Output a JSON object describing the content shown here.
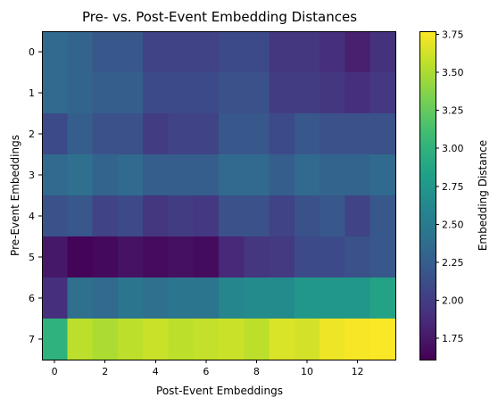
{
  "chart_data": {
    "type": "heatmap",
    "title": "Pre- vs. Post-Event Embedding Distances",
    "xlabel": "Post-Event Embeddings",
    "ylabel": "Pre-Event Embeddings",
    "colorbar_label": "Embedding Distance",
    "colormap": "viridis",
    "vmin": 1.61,
    "vmax": 3.77,
    "rows": 8,
    "cols": 14,
    "x_ticks": [
      0,
      2,
      4,
      6,
      8,
      10,
      12
    ],
    "x_tick_labels": [
      "0",
      "2",
      "4",
      "6",
      "8",
      "10",
      "12"
    ],
    "y_ticks": [
      0,
      1,
      2,
      3,
      4,
      5,
      6,
      7
    ],
    "y_tick_labels": [
      "0",
      "1",
      "2",
      "3",
      "4",
      "5",
      "6",
      "7"
    ],
    "colorbar_ticks": [
      1.75,
      2.0,
      2.25,
      2.5,
      2.75,
      3.0,
      3.25,
      3.5,
      3.75
    ],
    "colorbar_tick_labels": [
      "1.75",
      "2.00",
      "2.25",
      "2.50",
      "2.75",
      "3.00",
      "3.25",
      "3.50",
      "3.75"
    ],
    "values": [
      [
        2.35,
        2.3,
        2.2,
        2.2,
        2.05,
        2.05,
        2.05,
        2.1,
        2.1,
        1.95,
        1.95,
        1.9,
        1.8,
        1.92
      ],
      [
        2.35,
        2.3,
        2.25,
        2.25,
        2.1,
        2.1,
        2.1,
        2.15,
        2.15,
        2.0,
        2.0,
        1.95,
        1.9,
        1.97
      ],
      [
        2.1,
        2.25,
        2.15,
        2.15,
        2.0,
        2.05,
        2.05,
        2.2,
        2.2,
        2.1,
        2.2,
        2.15,
        2.15,
        2.15
      ],
      [
        2.35,
        2.4,
        2.3,
        2.35,
        2.25,
        2.25,
        2.25,
        2.35,
        2.35,
        2.25,
        2.35,
        2.3,
        2.3,
        2.35
      ],
      [
        2.15,
        2.2,
        2.05,
        2.1,
        1.95,
        2.0,
        1.97,
        2.15,
        2.15,
        2.05,
        2.15,
        2.2,
        2.05,
        2.2
      ],
      [
        1.75,
        1.63,
        1.66,
        1.72,
        1.68,
        1.7,
        1.68,
        1.85,
        1.95,
        1.98,
        2.1,
        2.1,
        2.15,
        2.2
      ],
      [
        1.9,
        2.4,
        2.35,
        2.45,
        2.4,
        2.45,
        2.45,
        2.6,
        2.65,
        2.65,
        2.75,
        2.75,
        2.75,
        2.85
      ],
      [
        3.0,
        3.55,
        3.5,
        3.55,
        3.6,
        3.55,
        3.58,
        3.6,
        3.55,
        3.65,
        3.63,
        3.72,
        3.75,
        3.76
      ]
    ]
  }
}
